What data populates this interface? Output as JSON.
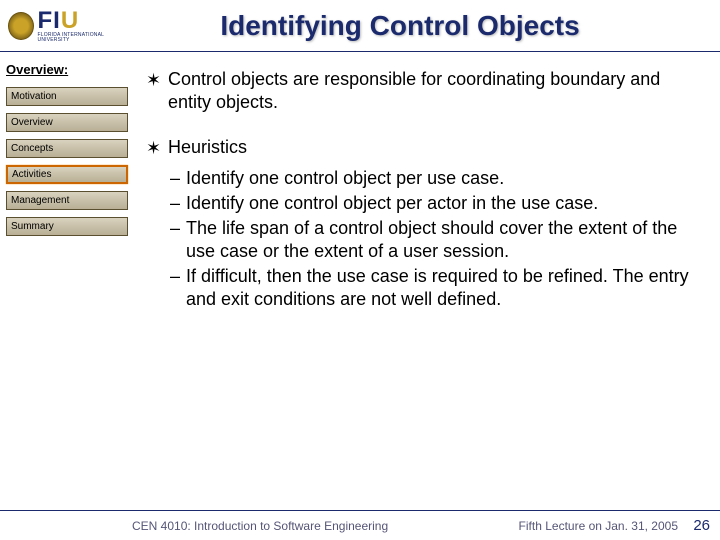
{
  "header": {
    "logo": {
      "letters_blue": "FI",
      "letters_gold": "U",
      "subtitle": "FLORIDA INTERNATIONAL UNIVERSITY"
    },
    "title": "Identifying Control Objects"
  },
  "sidebar": {
    "heading": "Overview:",
    "items": [
      {
        "label": "Motivation",
        "active": false
      },
      {
        "label": "Overview",
        "active": false
      },
      {
        "label": "Concepts",
        "active": false
      },
      {
        "label": "Activities",
        "active": true
      },
      {
        "label": "Management",
        "active": false
      },
      {
        "label": "Summary",
        "active": false
      }
    ]
  },
  "content": {
    "bullets": [
      {
        "text": "Control objects are responsible for coordinating boundary and entity objects.",
        "subs": []
      },
      {
        "text": "Heuristics",
        "subs": [
          "Identify one control object per use case.",
          "Identify one control object per actor in the use case.",
          "The life span of a control object should cover the extent of the use case or the extent of a user session.",
          "If difficult, then the use case is required to be refined.  The entry and exit conditions are not well defined."
        ]
      }
    ]
  },
  "footer": {
    "left": "CEN 4010: Introduction to Software Engineering",
    "right": "Fifth Lecture on Jan. 31, 2005",
    "page": "26"
  },
  "colors": {
    "title_color": "#1a2a6c",
    "nav_border": "#5a5030",
    "nav_active_border": "#cc6600",
    "footer_text": "#555577"
  }
}
